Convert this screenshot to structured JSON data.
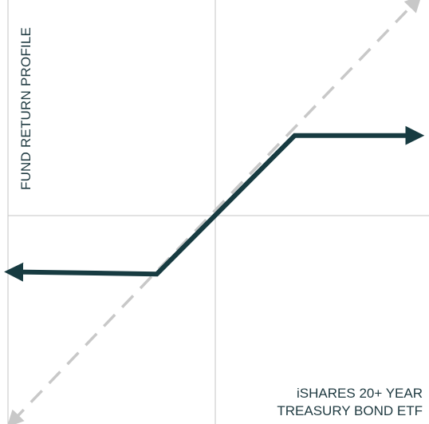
{
  "chart_data": {
    "type": "line",
    "title": "",
    "ylabel": "FUND RETURN PROFILE",
    "xlabel": [
      "iSHARES 20+ YEAR",
      "TREASURY BOND ETF"
    ],
    "xlim": [
      -1,
      1
    ],
    "ylim": [
      -1,
      1
    ],
    "grid": false,
    "series": [
      {
        "style": "solid",
        "color": "#173b41",
        "arrows": "both",
        "x": [
          -0.97,
          -0.28,
          0.38,
          0.96
        ],
        "y": [
          -0.26,
          -0.27,
          0.37,
          0.37
        ]
      },
      {
        "style": "dashed",
        "color": "#c8c8c8",
        "arrows": "both",
        "x": [
          -0.97,
          0.96
        ],
        "y": [
          -0.95,
          0.99
        ]
      }
    ]
  }
}
